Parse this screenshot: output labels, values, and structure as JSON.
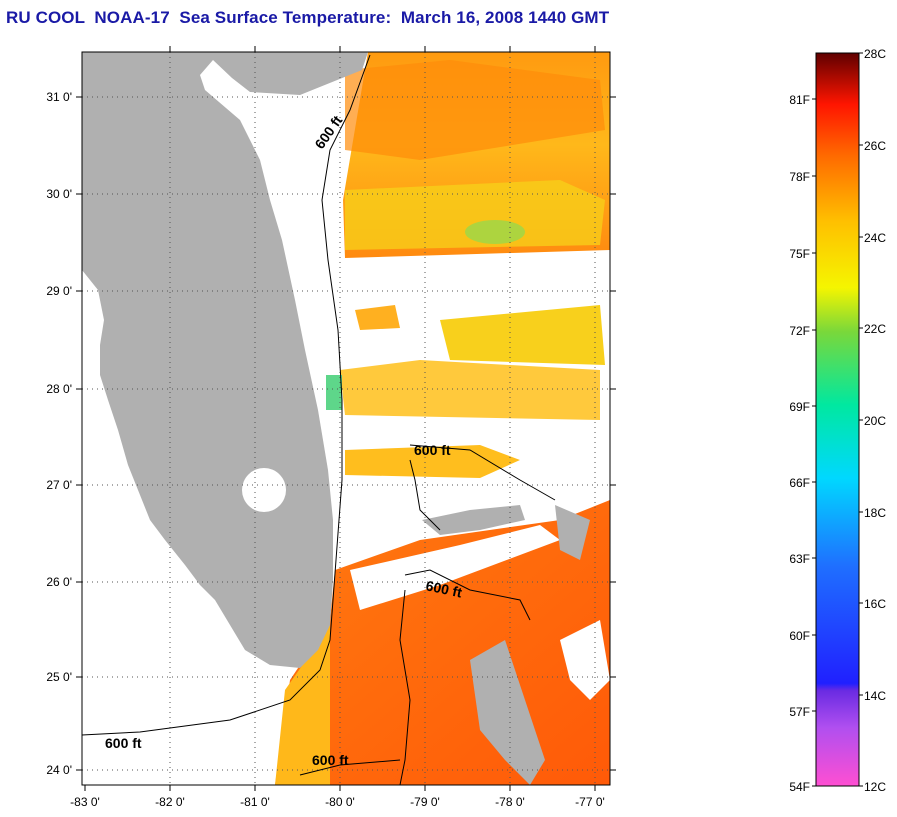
{
  "title": "RU COOL  NOAA-17  Sea Surface Temperature:  March 16, 2008 1440 GMT",
  "map": {
    "lon_ticks": [
      "-83 0'",
      "-82 0'",
      "-81 0'",
      "-80 0'",
      "-79 0'",
      "-78 0'",
      "-77 0'"
    ],
    "lat_ticks": [
      "31 0'",
      "30 0'",
      "29 0'",
      "28 0'",
      "27 0'",
      "26 0'",
      "25 0'",
      "24 0'"
    ],
    "contour_labels": [
      "600 ft",
      "600 ft",
      "600 ft",
      "600 ft",
      "600 ft"
    ],
    "land_color": "#b0b0b0",
    "cloud_color": "#ffffff"
  },
  "colorbar": {
    "fahrenheit_labels": [
      "81F",
      "78F",
      "75F",
      "72F",
      "69F",
      "66F",
      "63F",
      "60F",
      "57F",
      "54F"
    ],
    "celsius_labels": [
      "28C",
      "26C",
      "24C",
      "22C",
      "20C",
      "18C",
      "16C",
      "14C",
      "12C"
    ],
    "range_c": [
      12,
      28
    ],
    "colors": [
      "#ff4fd2",
      "#8a2be2",
      "#1f1fff",
      "#00bfff",
      "#00e0b0",
      "#39d65a",
      "#f5f500",
      "#ffc400",
      "#ff7a00",
      "#ff2a00",
      "#e00000",
      "#600000"
    ]
  }
}
